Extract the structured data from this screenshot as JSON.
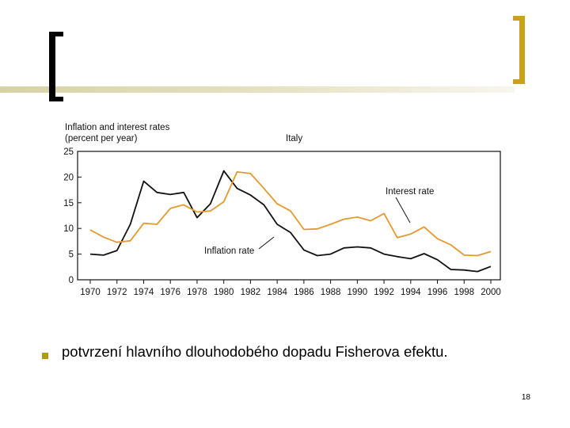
{
  "colors": {
    "inflation": "#111111",
    "interest": "#e39a2e",
    "accent_gold": "#c8a31a",
    "bullet": "#b19a19"
  },
  "chart_data": {
    "type": "line",
    "title": "Italy",
    "ylabel_line1": "Inflation and interest rates",
    "ylabel_line2": "(percent per year)",
    "xlabel": "",
    "ylim": [
      0,
      25
    ],
    "y_ticks": [
      "0",
      "5",
      "10",
      "15",
      "20",
      "25"
    ],
    "x_ticks": [
      "1970",
      "1972",
      "1974",
      "1976",
      "1978",
      "1980",
      "1982",
      "1984",
      "1986",
      "1988",
      "1990",
      "1992",
      "1994",
      "1996",
      "1998",
      "2000"
    ],
    "x": [
      1970,
      1971,
      1972,
      1973,
      1974,
      1975,
      1976,
      1977,
      1978,
      1979,
      1980,
      1981,
      1982,
      1983,
      1984,
      1985,
      1986,
      1987,
      1988,
      1989,
      1990,
      1991,
      1992,
      1993,
      1994,
      1995,
      1996,
      1997,
      1998,
      1999,
      2000
    ],
    "series": [
      {
        "name": "Inflation rate",
        "values": [
          5.0,
          4.8,
          5.7,
          10.8,
          19.2,
          17.0,
          16.6,
          17.0,
          12.1,
          14.8,
          21.2,
          17.8,
          16.5,
          14.6,
          10.8,
          9.2,
          5.8,
          4.7,
          5.0,
          6.2,
          6.4,
          6.2,
          5.0,
          4.5,
          4.1,
          5.1,
          3.9,
          2.0,
          1.9,
          1.6,
          2.6
        ]
      },
      {
        "name": "Interest rate",
        "values": [
          9.7,
          8.3,
          7.3,
          7.6,
          11.0,
          10.8,
          13.9,
          14.6,
          13.2,
          13.4,
          15.2,
          21.0,
          20.7,
          17.8,
          14.8,
          13.4,
          9.8,
          9.9,
          10.8,
          11.8,
          12.2,
          11.5,
          12.9,
          8.2,
          8.9,
          10.3,
          8.0,
          6.8,
          4.8,
          4.7,
          5.5
        ]
      }
    ],
    "annotations": {
      "interest_label": "Interest rate",
      "inflation_label": "Inflation rate"
    }
  },
  "bullet_text": "potvrzení hlavního dlouhodobého dopadu Fisherova efektu.",
  "page_number": "18"
}
